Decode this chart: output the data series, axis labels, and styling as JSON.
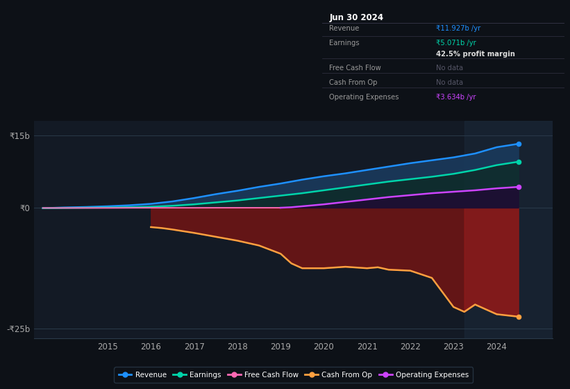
{
  "bg_color": "#0d1117",
  "plot_bg_color": "#131a25",
  "grid_color": "#2a3a4a",
  "ylim": [
    -27,
    18
  ],
  "ytick_vals": [
    -25,
    0,
    15
  ],
  "ytick_labels": [
    "-₹25b",
    "₹0",
    "₹15b"
  ],
  "xlim_start": 2013.3,
  "xlim_end": 2025.3,
  "xticks": [
    2015,
    2016,
    2017,
    2018,
    2019,
    2020,
    2021,
    2022,
    2023,
    2024
  ],
  "highlight_start": 2023.25,
  "revenue_x": [
    2013.5,
    2014.0,
    2014.5,
    2015.0,
    2015.5,
    2016.0,
    2016.5,
    2017.0,
    2017.25,
    2017.5,
    2018.0,
    2018.5,
    2019.0,
    2019.5,
    2020.0,
    2020.5,
    2021.0,
    2021.5,
    2022.0,
    2022.5,
    2023.0,
    2023.5,
    2024.0,
    2024.5
  ],
  "revenue_y": [
    -0.1,
    0.05,
    0.15,
    0.3,
    0.5,
    0.8,
    1.3,
    2.0,
    2.4,
    2.8,
    3.5,
    4.3,
    5.0,
    5.8,
    6.5,
    7.1,
    7.8,
    8.5,
    9.2,
    9.8,
    10.4,
    11.2,
    12.5,
    13.2
  ],
  "revenue_color": "#1e90ff",
  "earnings_x": [
    2013.5,
    2014.0,
    2014.5,
    2015.0,
    2015.5,
    2016.0,
    2016.5,
    2017.0,
    2017.25,
    2017.5,
    2018.0,
    2018.5,
    2019.0,
    2019.5,
    2020.0,
    2020.5,
    2021.0,
    2021.5,
    2022.0,
    2022.5,
    2023.0,
    2023.5,
    2024.0,
    2024.5
  ],
  "earnings_y": [
    -0.1,
    -0.05,
    0.0,
    0.05,
    0.1,
    0.2,
    0.4,
    0.7,
    0.9,
    1.1,
    1.5,
    2.0,
    2.5,
    3.0,
    3.6,
    4.2,
    4.8,
    5.4,
    5.9,
    6.4,
    7.0,
    7.8,
    8.8,
    9.5
  ],
  "earnings_color": "#00d4aa",
  "fcf_x": [
    2013.5,
    2014.0,
    2014.5,
    2015.0,
    2015.5,
    2016.0,
    2016.5,
    2017.0,
    2017.5,
    2018.0,
    2018.5,
    2019.0
  ],
  "fcf_y": [
    -0.05,
    -0.05,
    -0.05,
    -0.05,
    -0.03,
    -0.02,
    -0.02,
    -0.02,
    -0.01,
    -0.01,
    -0.01,
    -0.01
  ],
  "fcf_color": "#ff69b4",
  "cop_x": [
    2016.0,
    2016.25,
    2016.5,
    2017.0,
    2017.5,
    2018.0,
    2018.5,
    2019.0,
    2019.25,
    2019.5,
    2020.0,
    2020.5,
    2021.0,
    2021.25,
    2021.5,
    2022.0,
    2022.5,
    2023.0,
    2023.25,
    2023.5,
    2024.0,
    2024.5
  ],
  "cop_y": [
    -4.0,
    -4.2,
    -4.5,
    -5.2,
    -6.0,
    -6.8,
    -7.8,
    -9.5,
    -11.5,
    -12.5,
    -12.5,
    -12.2,
    -12.5,
    -12.3,
    -12.8,
    -13.0,
    -14.5,
    -20.5,
    -21.5,
    -20.0,
    -22.0,
    -22.5
  ],
  "cop_color": "#ffa040",
  "opex_x": [
    2019.0,
    2019.25,
    2019.5,
    2020.0,
    2020.5,
    2021.0,
    2021.5,
    2022.0,
    2022.5,
    2023.0,
    2023.5,
    2024.0,
    2024.5
  ],
  "opex_y": [
    0.0,
    0.1,
    0.3,
    0.7,
    1.2,
    1.7,
    2.2,
    2.6,
    3.0,
    3.3,
    3.6,
    4.0,
    4.3
  ],
  "opex_color": "#cc44ff",
  "legend_items": [
    "Revenue",
    "Earnings",
    "Free Cash Flow",
    "Cash From Op",
    "Operating Expenses"
  ],
  "legend_colors": [
    "#1e90ff",
    "#00d4aa",
    "#ff69b4",
    "#ffa040",
    "#cc44ff"
  ],
  "infobox_date": "Jun 30 2024",
  "infobox_rows": [
    {
      "label": "Revenue",
      "value": "₹11.927b /yr",
      "vcolor": "#1e90ff"
    },
    {
      "label": "Earnings",
      "value": "₹5.071b /yr",
      "vcolor": "#00d4aa"
    },
    {
      "label": "",
      "value": "42.5% profit margin",
      "vcolor": "#dddddd",
      "bold": true
    },
    {
      "label": "Free Cash Flow",
      "value": "No data",
      "vcolor": "#555566"
    },
    {
      "label": "Cash From Op",
      "value": "No data",
      "vcolor": "#555566"
    },
    {
      "label": "Operating Expenses",
      "value": "₹3.634b /yr",
      "vcolor": "#cc44ff"
    }
  ]
}
